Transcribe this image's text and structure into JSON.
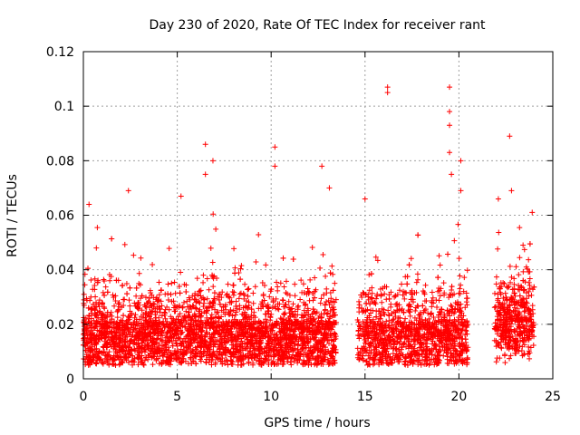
{
  "chart_data": {
    "type": "scatter",
    "title": "Day 230 of 2020, Rate Of TEC Index for receiver rant",
    "xlabel": "GPS time / hours",
    "ylabel": "ROTI / TECUs",
    "xlim": [
      0,
      25
    ],
    "ylim": [
      0,
      0.12
    ],
    "xticks": [
      0,
      5,
      10,
      15,
      20,
      25
    ],
    "yticks": [
      0,
      0.02,
      0.04,
      0.06,
      0.08,
      0.1,
      0.12
    ],
    "ytick_labels": [
      "0",
      "0.02",
      "0.04",
      "0.06",
      "0.08",
      "0.1",
      "0.12"
    ],
    "xtick_labels": [
      "0",
      "5",
      "10",
      "15",
      "20",
      "25"
    ],
    "grid": true,
    "marker": "+",
    "series_color": "#ff0000",
    "data_gaps_hours": [
      [
        13.5,
        14.6
      ],
      [
        20.5,
        21.9
      ]
    ],
    "notable_points": [
      {
        "x": 0.3,
        "y": 0.064
      },
      {
        "x": 2.4,
        "y": 0.069
      },
      {
        "x": 5.2,
        "y": 0.067
      },
      {
        "x": 6.5,
        "y": 0.086
      },
      {
        "x": 6.5,
        "y": 0.075
      },
      {
        "x": 6.9,
        "y": 0.08
      },
      {
        "x": 10.2,
        "y": 0.085
      },
      {
        "x": 10.2,
        "y": 0.078
      },
      {
        "x": 12.7,
        "y": 0.078
      },
      {
        "x": 13.1,
        "y": 0.07
      },
      {
        "x": 15.0,
        "y": 0.066
      },
      {
        "x": 16.2,
        "y": 0.107
      },
      {
        "x": 16.2,
        "y": 0.105
      },
      {
        "x": 19.5,
        "y": 0.107
      },
      {
        "x": 19.5,
        "y": 0.098
      },
      {
        "x": 19.5,
        "y": 0.093
      },
      {
        "x": 19.5,
        "y": 0.083
      },
      {
        "x": 19.6,
        "y": 0.075
      },
      {
        "x": 20.1,
        "y": 0.08
      },
      {
        "x": 20.1,
        "y": 0.069
      },
      {
        "x": 22.1,
        "y": 0.066
      },
      {
        "x": 22.7,
        "y": 0.089
      },
      {
        "x": 22.8,
        "y": 0.069
      }
    ]
  }
}
